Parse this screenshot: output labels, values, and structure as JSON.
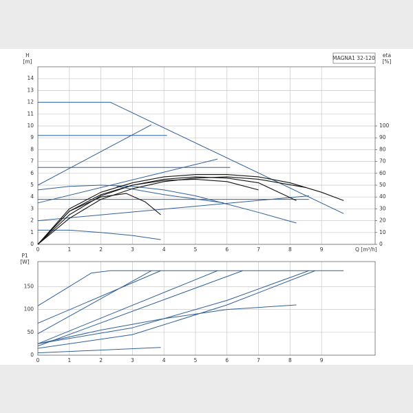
{
  "chart_data": [
    {
      "type": "line",
      "title": "MAGNA1 32-120",
      "ylabel": "H",
      "yunit": "[m]",
      "y2label": "eta",
      "y2unit": "[%]",
      "xlabel": "Q [m³/h]",
      "xlim": [
        0,
        10.7
      ],
      "xticks": [
        0,
        1,
        2,
        3,
        4,
        5,
        6,
        7,
        8,
        9
      ],
      "ylim": [
        0,
        15
      ],
      "yticks": [
        0,
        1,
        2,
        3,
        4,
        5,
        6,
        7,
        8,
        9,
        10,
        11,
        12,
        13,
        14
      ],
      "y2lim": [
        0,
        150
      ],
      "y2ticks": [
        0,
        10,
        20,
        30,
        40,
        50,
        60,
        70,
        80,
        90,
        100
      ],
      "grid": true,
      "series": [
        {
          "color": "#2f5f98",
          "x": [
            0,
            2.3,
            9.7
          ],
          "values": [
            12,
            12,
            2.6
          ]
        },
        {
          "color": "#2f5f98",
          "x": [
            0,
            4.1
          ],
          "values": [
            9.2,
            9.2
          ]
        },
        {
          "color": "#2f5f98",
          "x": [
            0,
            6.1
          ],
          "values": [
            6.5,
            6.5
          ]
        },
        {
          "color": "#2f5f98",
          "x": [
            0,
            8.6
          ],
          "values": [
            3.8,
            3.8
          ]
        },
        {
          "color": "#2f5f98",
          "x": [
            0,
            3.6
          ],
          "values": [
            5,
            10.1
          ]
        },
        {
          "color": "#2f5f98",
          "x": [
            0,
            5.7
          ],
          "values": [
            3.5,
            7.2
          ]
        },
        {
          "color": "#2f5f98",
          "x": [
            0,
            8.6
          ],
          "values": [
            2,
            4.1
          ]
        },
        {
          "color": "#2f5f98",
          "x": [
            0,
            1,
            2,
            3,
            4,
            5,
            6,
            7,
            8.2
          ],
          "values": [
            4.6,
            4.9,
            5,
            4.9,
            4.6,
            4.1,
            3.4,
            2.7,
            1.8
          ]
        },
        {
          "color": "#2f5f98",
          "x": [
            0,
            1,
            2,
            3,
            3.9
          ],
          "values": [
            1.2,
            1.2,
            1,
            0.75,
            0.4
          ]
        },
        {
          "color": "#2f5f98",
          "x": [
            2.5,
            4,
            5.9
          ],
          "values": [
            4.9,
            4.2,
            3.5
          ]
        },
        {
          "color": "#111111",
          "axis": "y2",
          "x": [
            0,
            1,
            2,
            3,
            4,
            5,
            6,
            7,
            8,
            9,
            9.7
          ],
          "values": [
            0,
            30,
            44,
            52,
            57,
            59,
            59,
            57,
            52,
            44,
            37
          ]
        },
        {
          "color": "#111111",
          "axis": "y2",
          "x": [
            0,
            1,
            2,
            3,
            4,
            5,
            6,
            7,
            8.2
          ],
          "values": [
            0,
            28,
            42,
            50,
            55,
            57,
            56,
            52,
            37
          ]
        },
        {
          "color": "#111111",
          "axis": "y2",
          "x": [
            0,
            1,
            2,
            2.8,
            3.4,
            3.9
          ],
          "values": [
            0,
            28,
            40,
            43,
            36,
            25
          ]
        },
        {
          "color": "#111111",
          "axis": "y2",
          "x": [
            0,
            1,
            2,
            3,
            4,
            5,
            6,
            7,
            8.5
          ],
          "values": [
            0,
            22,
            38,
            47,
            53,
            56,
            57,
            55,
            48
          ]
        },
        {
          "color": "#111111",
          "axis": "y2",
          "x": [
            0,
            1,
            2,
            3,
            4,
            5,
            6,
            7
          ],
          "values": [
            0,
            25,
            41,
            50,
            54,
            55,
            53,
            46
          ]
        }
      ]
    },
    {
      "type": "line",
      "ylabel": "P1",
      "yunit": "[W]",
      "xlim": [
        0,
        10.7
      ],
      "xticks": [
        0,
        1,
        2,
        3,
        4,
        5,
        6,
        7,
        8,
        9
      ],
      "ylim": [
        0,
        205
      ],
      "yticks": [
        0,
        50,
        100,
        150
      ],
      "grid": true,
      "series": [
        {
          "color": "#2f5f98",
          "x": [
            0,
            1.7,
            2.3,
            9.7
          ],
          "values": [
            108,
            180,
            185,
            185
          ]
        },
        {
          "color": "#2f5f98",
          "x": [
            0,
            3.6
          ],
          "values": [
            47,
            185
          ]
        },
        {
          "color": "#2f5f98",
          "x": [
            0,
            3.9
          ],
          "values": [
            70,
            185
          ]
        },
        {
          "color": "#2f5f98",
          "x": [
            0,
            5.7
          ],
          "values": [
            25,
            185
          ]
        },
        {
          "color": "#2f5f98",
          "x": [
            0,
            6.5
          ],
          "values": [
            20,
            185
          ]
        },
        {
          "color": "#2f5f98",
          "x": [
            0,
            3,
            6,
            8.6
          ],
          "values": [
            25,
            60,
            120,
            185
          ]
        },
        {
          "color": "#2f5f98",
          "x": [
            0,
            3,
            6,
            8.8
          ],
          "values": [
            15,
            45,
            110,
            185
          ]
        },
        {
          "color": "#2f5f98",
          "x": [
            0,
            2,
            4,
            6,
            8.2
          ],
          "values": [
            25,
            55,
            80,
            100,
            110
          ]
        },
        {
          "color": "#2f5f98",
          "x": [
            0,
            3.9
          ],
          "values": [
            5,
            17
          ]
        }
      ]
    }
  ]
}
